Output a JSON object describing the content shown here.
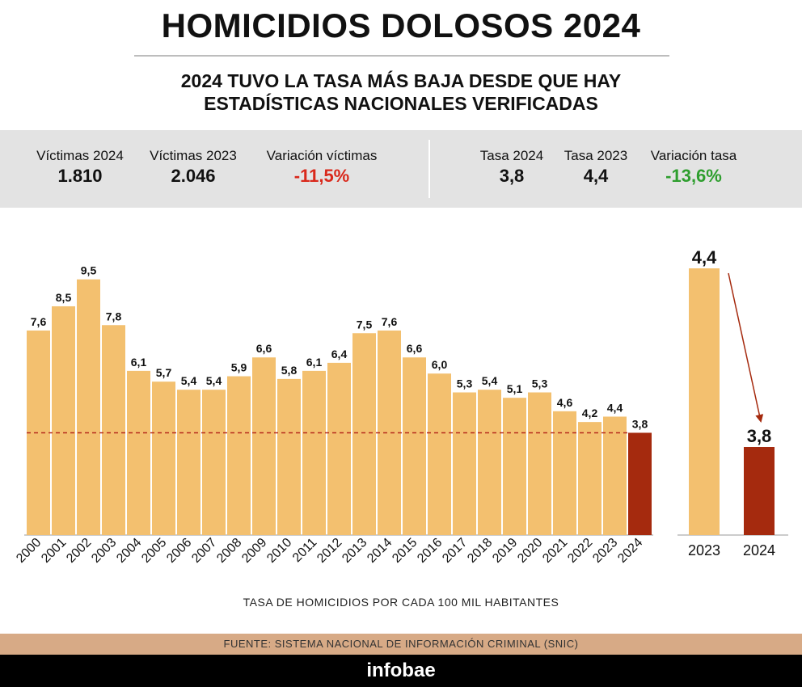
{
  "title": "HOMICIDIOS DOLOSOS 2024",
  "subtitle": [
    "2024 TUVO LA TASA MÁS BAJA DESDE QUE HAY",
    "ESTADÍSTICAS NACIONALES VERIFICADAS"
  ],
  "stats": {
    "victimas_2024": {
      "label": "Víctimas 2024",
      "value": "1.810"
    },
    "victimas_2023": {
      "label": "Víctimas 2023",
      "value": "2.046"
    },
    "variacion_victimas": {
      "label": "Variación víctimas",
      "value": "-11,5%"
    },
    "tasa_2024": {
      "label": "Tasa 2024",
      "value": "3,8"
    },
    "tasa_2023": {
      "label": "Tasa 2023",
      "value": "4,4"
    },
    "variacion_tasa": {
      "label": "Variación tasa",
      "value": "-13,6%"
    }
  },
  "colors": {
    "bar": "#f3c06f",
    "highlight": "#a52a0e",
    "negative_red": "#d9281b",
    "negative_green": "#2e9e2e",
    "reference_line": "#b52a1c",
    "stats_bg": "#e3e3e3",
    "source_bg": "#d7aa86"
  },
  "chart_data": [
    {
      "type": "bar",
      "categories": [
        "2000",
        "2001",
        "2002",
        "2003",
        "2004",
        "2005",
        "2006",
        "2007",
        "2008",
        "2009",
        "2010",
        "2011",
        "2012",
        "2013",
        "2014",
        "2015",
        "2016",
        "2017",
        "2018",
        "2019",
        "2020",
        "2021",
        "2022",
        "2023",
        "2024"
      ],
      "values": [
        7.6,
        8.5,
        9.5,
        7.8,
        6.1,
        5.7,
        5.4,
        5.4,
        5.9,
        6.6,
        5.8,
        6.1,
        6.4,
        7.5,
        7.6,
        6.6,
        6.0,
        5.3,
        5.4,
        5.1,
        5.3,
        4.6,
        4.2,
        4.4,
        3.8
      ],
      "labels": [
        "7,6",
        "8,5",
        "9,5",
        "7,8",
        "6,1",
        "5,7",
        "5,4",
        "5,4",
        "5,9",
        "6,6",
        "5,8",
        "6,1",
        "6,4",
        "7,5",
        "7,6",
        "6,6",
        "6,0",
        "5,3",
        "5,4",
        "5,1",
        "5,3",
        "4,6",
        "4,2",
        "4,4",
        "3,8"
      ],
      "highlight_category": "2024",
      "reference_line_value": 3.8,
      "xlabel": "TASA DE HOMICIDIOS POR CADA 100 MIL HABITANTES",
      "ylabel": "",
      "ylim": [
        0,
        9.5
      ]
    },
    {
      "type": "bar",
      "categories": [
        "2023",
        "2024"
      ],
      "values": [
        4.4,
        3.8
      ],
      "labels": [
        "4,4",
        "3,8"
      ],
      "highlight_category": "2024",
      "annotation": "arrow from 2023 to 2024",
      "ylim": [
        3.0,
        4.4
      ]
    }
  ],
  "source": "FUENTE: SISTEMA NACIONAL DE INFORMACIÓN CRIMINAL (SNIC)",
  "brand": "infobae"
}
